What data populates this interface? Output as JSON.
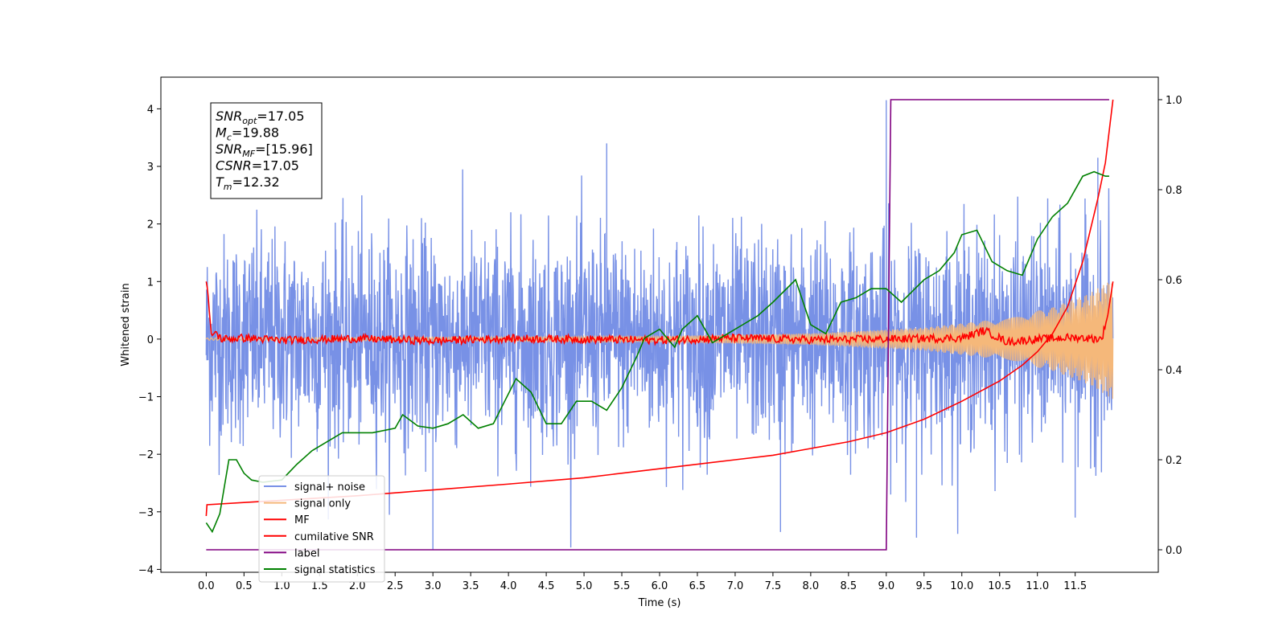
{
  "chart_data": {
    "type": "line",
    "xlabel": "Time (s)",
    "ylabel": "Whitened strain",
    "xlim": [
      -0.6,
      12.6
    ],
    "ylim_left": [
      -4.05,
      4.55
    ],
    "ylim_right": [
      -0.05,
      1.05
    ],
    "x_ticks": [
      0.0,
      0.5,
      1.0,
      1.5,
      2.0,
      2.5,
      3.0,
      3.5,
      4.0,
      4.5,
      5.0,
      5.5,
      6.0,
      6.5,
      7.0,
      7.5,
      8.0,
      8.5,
      9.0,
      9.5,
      10.0,
      10.5,
      11.0,
      11.5
    ],
    "x_tick_labels": [
      "0.0",
      "0.5",
      "1.0",
      "1.5",
      "2.0",
      "2.5",
      "3.0",
      "3.5",
      "4.0",
      "4.5",
      "5.0",
      "5.5",
      "6.0",
      "6.5",
      "7.0",
      "7.5",
      "8.0",
      "8.5",
      "9.0",
      "9.5",
      "10.0",
      "10.5",
      "11.0",
      "11.5"
    ],
    "y_left_ticks": [
      -4,
      -3,
      -2,
      -1,
      0,
      1,
      2,
      3,
      4
    ],
    "y_left_tick_labels": [
      "−4",
      "−3",
      "−2",
      "−1",
      "0",
      "1",
      "2",
      "3",
      "4"
    ],
    "y_right_ticks": [
      0.0,
      0.2,
      0.4,
      0.6,
      0.8,
      1.0
    ],
    "y_right_tick_labels": [
      "0.0",
      "0.2",
      "0.4",
      "0.6",
      "0.8",
      "1.0"
    ],
    "grid": false,
    "legend_position": "lower-left",
    "annotation": [
      {
        "base": "SNR",
        "sub": "opt",
        "text": "=17.05"
      },
      {
        "base": "M",
        "sub": "c",
        "text": "=19.88"
      },
      {
        "base": "SNR",
        "sub": "MF",
        "text": "=[15.96]"
      },
      {
        "base": "CSNR",
        "sub": "",
        "text": "=17.05"
      },
      {
        "base": "T",
        "sub": "m",
        "text": "=12.32"
      }
    ],
    "series": [
      {
        "name": "signal+ noise",
        "axis": "left",
        "color": "#7891e6",
        "kind": "noise",
        "x_range": [
          0.0,
          12.0
        ],
        "amplitude_std": 1.0,
        "min": -3.65,
        "max": 4.15,
        "spike_points": [
          [
            5.3,
            3.4
          ],
          [
            3.0,
            -3.65
          ],
          [
            9.0,
            4.15
          ],
          [
            9.4,
            -3.45
          ],
          [
            7.6,
            -3.35
          ],
          [
            11.8,
            3.15
          ],
          [
            11.5,
            -3.1
          ]
        ]
      },
      {
        "name": "signal only",
        "axis": "left",
        "color": "#f5b87a",
        "kind": "chirp",
        "x_range": [
          0.0,
          12.0
        ],
        "envelope": [
          [
            0.0,
            0.02
          ],
          [
            6.0,
            0.05
          ],
          [
            8.0,
            0.1
          ],
          [
            9.5,
            0.2
          ],
          [
            10.5,
            0.35
          ],
          [
            11.2,
            0.55
          ],
          [
            11.7,
            0.8
          ],
          [
            12.0,
            1.05
          ]
        ]
      },
      {
        "name": "MF",
        "axis": "left",
        "color": "#ff0000",
        "kind": "mf",
        "points": [
          [
            0.0,
            1.0
          ],
          [
            0.02,
            0.85
          ],
          [
            0.04,
            0.5
          ],
          [
            0.07,
            0.05
          ],
          [
            0.12,
            0.12
          ],
          [
            0.2,
            0.0
          ],
          [
            0.5,
            0.02
          ],
          [
            1.0,
            -0.02
          ],
          [
            2.0,
            0.01
          ],
          [
            3.0,
            -0.03
          ],
          [
            4.0,
            0.01
          ],
          [
            5.0,
            0.0
          ],
          [
            6.0,
            -0.02
          ],
          [
            7.0,
            0.02
          ],
          [
            8.0,
            -0.01
          ],
          [
            9.0,
            0.0
          ],
          [
            10.0,
            0.02
          ],
          [
            10.3,
            0.15
          ],
          [
            10.6,
            -0.05
          ],
          [
            11.0,
            0.0
          ],
          [
            11.5,
            0.03
          ],
          [
            11.85,
            0.0
          ],
          [
            11.93,
            0.4
          ],
          [
            12.0,
            1.0
          ]
        ]
      },
      {
        "name": "cumilative SNR",
        "axis": "right",
        "color": "#ff0000",
        "kind": "line",
        "points": [
          [
            0.0,
            0.075
          ],
          [
            0.01,
            0.1
          ],
          [
            0.5,
            0.105
          ],
          [
            1.0,
            0.11
          ],
          [
            2.0,
            0.12
          ],
          [
            3.0,
            0.133
          ],
          [
            4.0,
            0.146
          ],
          [
            5.0,
            0.16
          ],
          [
            6.0,
            0.18
          ],
          [
            7.0,
            0.2
          ],
          [
            7.5,
            0.21
          ],
          [
            8.0,
            0.225
          ],
          [
            8.5,
            0.24
          ],
          [
            9.0,
            0.26
          ],
          [
            9.5,
            0.29
          ],
          [
            10.0,
            0.33
          ],
          [
            10.5,
            0.375
          ],
          [
            10.8,
            0.41
          ],
          [
            11.0,
            0.44
          ],
          [
            11.2,
            0.48
          ],
          [
            11.4,
            0.54
          ],
          [
            11.6,
            0.64
          ],
          [
            11.8,
            0.78
          ],
          [
            11.9,
            0.86
          ],
          [
            12.0,
            1.0
          ]
        ]
      },
      {
        "name": "label",
        "axis": "right",
        "color": "#800080",
        "kind": "line",
        "points": [
          [
            0.0,
            0.0
          ],
          [
            9.0,
            0.0
          ],
          [
            9.06,
            1.0
          ],
          [
            11.95,
            1.0
          ]
        ]
      },
      {
        "name": "signal statistics",
        "axis": "right",
        "color": "#008000",
        "kind": "line",
        "points": [
          [
            0.0,
            0.06
          ],
          [
            0.08,
            0.04
          ],
          [
            0.18,
            0.08
          ],
          [
            0.3,
            0.2
          ],
          [
            0.4,
            0.2
          ],
          [
            0.5,
            0.17
          ],
          [
            0.6,
            0.155
          ],
          [
            0.75,
            0.15
          ],
          [
            1.0,
            0.155
          ],
          [
            1.2,
            0.19
          ],
          [
            1.4,
            0.22
          ],
          [
            1.6,
            0.24
          ],
          [
            1.8,
            0.26
          ],
          [
            2.0,
            0.26
          ],
          [
            2.2,
            0.26
          ],
          [
            2.5,
            0.27
          ],
          [
            2.6,
            0.3
          ],
          [
            2.8,
            0.275
          ],
          [
            3.0,
            0.27
          ],
          [
            3.2,
            0.28
          ],
          [
            3.4,
            0.3
          ],
          [
            3.6,
            0.27
          ],
          [
            3.8,
            0.28
          ],
          [
            3.95,
            0.33
          ],
          [
            4.1,
            0.38
          ],
          [
            4.3,
            0.35
          ],
          [
            4.5,
            0.28
          ],
          [
            4.7,
            0.28
          ],
          [
            4.9,
            0.33
          ],
          [
            5.1,
            0.33
          ],
          [
            5.3,
            0.31
          ],
          [
            5.5,
            0.36
          ],
          [
            5.7,
            0.43
          ],
          [
            5.8,
            0.47
          ],
          [
            6.0,
            0.49
          ],
          [
            6.2,
            0.45
          ],
          [
            6.3,
            0.49
          ],
          [
            6.5,
            0.52
          ],
          [
            6.7,
            0.46
          ],
          [
            6.9,
            0.48
          ],
          [
            7.1,
            0.5
          ],
          [
            7.3,
            0.52
          ],
          [
            7.5,
            0.55
          ],
          [
            7.8,
            0.6
          ],
          [
            8.0,
            0.5
          ],
          [
            8.2,
            0.48
          ],
          [
            8.4,
            0.55
          ],
          [
            8.6,
            0.56
          ],
          [
            8.8,
            0.58
          ],
          [
            9.0,
            0.58
          ],
          [
            9.2,
            0.55
          ],
          [
            9.5,
            0.6
          ],
          [
            9.7,
            0.62
          ],
          [
            9.9,
            0.66
          ],
          [
            10.0,
            0.7
          ],
          [
            10.2,
            0.71
          ],
          [
            10.4,
            0.64
          ],
          [
            10.6,
            0.62
          ],
          [
            10.8,
            0.61
          ],
          [
            11.0,
            0.69
          ],
          [
            11.2,
            0.74
          ],
          [
            11.4,
            0.77
          ],
          [
            11.6,
            0.83
          ],
          [
            11.75,
            0.84
          ],
          [
            11.9,
            0.83
          ],
          [
            11.95,
            0.83
          ]
        ]
      }
    ]
  }
}
